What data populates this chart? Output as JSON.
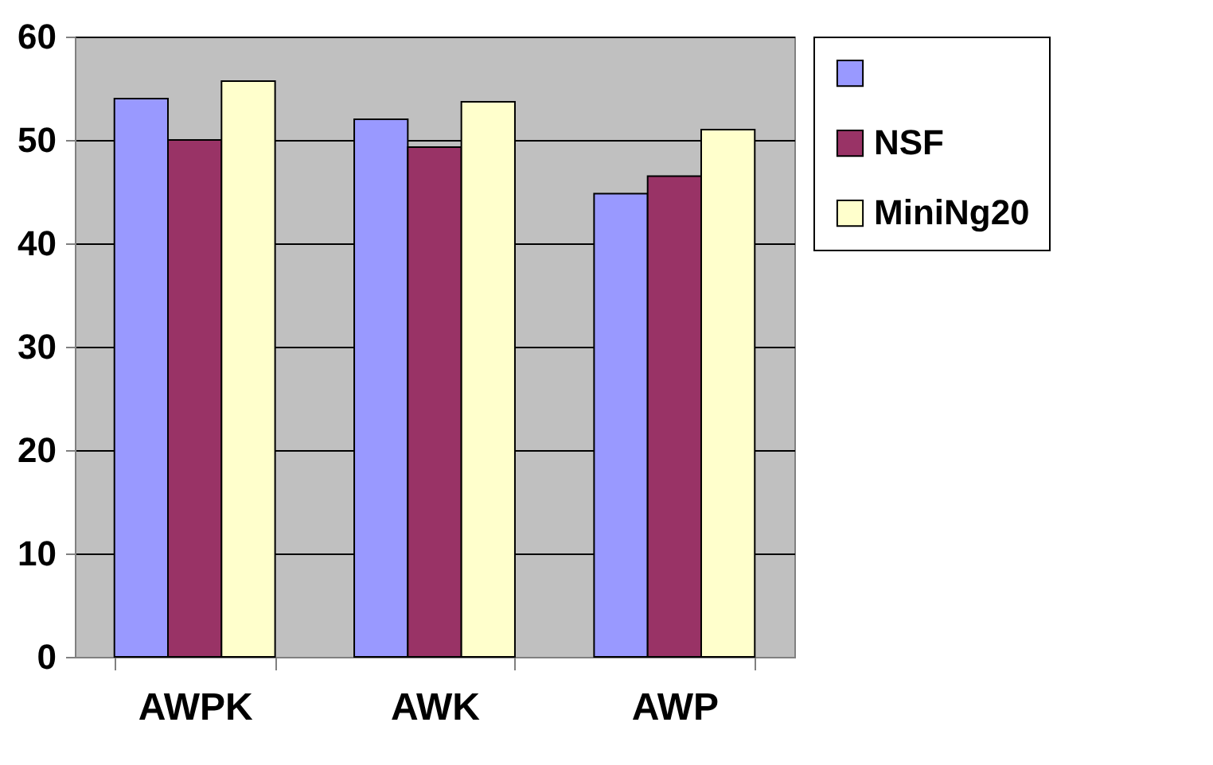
{
  "chart_data": {
    "type": "bar",
    "categories": [
      "AWPK",
      "AWK",
      "AWP"
    ],
    "series": [
      {
        "color": "#9999ff",
        "values": [
          54,
          52,
          44.8
        ]
      },
      {
        "name": "NSF",
        "color": "#993366",
        "values": [
          50,
          49.3,
          46.5
        ]
      },
      {
        "name": "MiniNg20",
        "color": "#ffffcc",
        "values": [
          55.7,
          53.7,
          51
        ]
      }
    ],
    "ylim": [
      0,
      60
    ],
    "yticks": [
      0,
      10,
      20,
      30,
      40,
      50,
      60
    ],
    "grid": "y",
    "legend": "right"
  }
}
